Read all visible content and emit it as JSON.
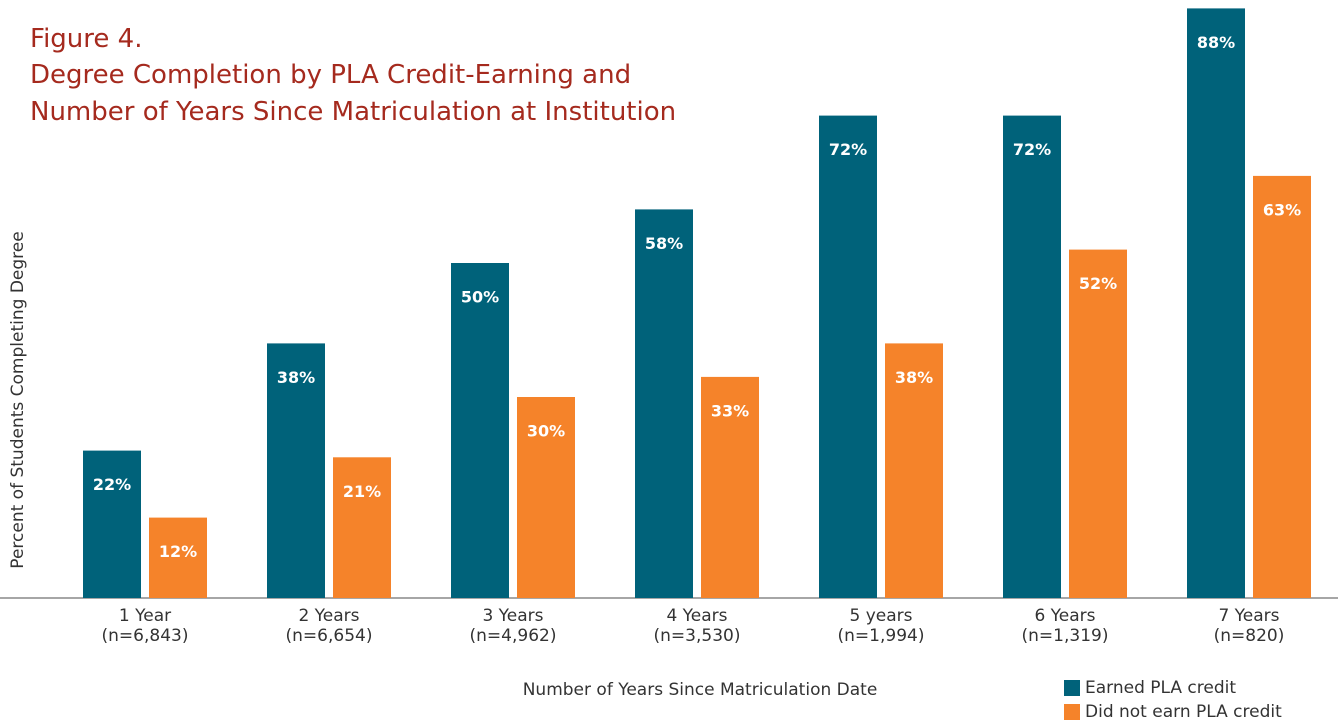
{
  "chart_data": {
    "type": "bar",
    "title": [
      "Figure 4.",
      "Degree Completion by PLA Credit-Earning and",
      "Number of Years Since Matriculation at Institution"
    ],
    "x_label": "Number of Years Since Matriculation Date",
    "y_label": "Percent of Students Completing Degree",
    "categories": [
      [
        "1 Year",
        "(n=6,843)"
      ],
      [
        "2 Years",
        "(n=6,654)"
      ],
      [
        "3 Years",
        "(n=4,962)"
      ],
      [
        "4 Years",
        "(n=3,530)"
      ],
      [
        "5 years",
        "(n=1,994)"
      ],
      [
        "6 Years",
        "(n=1,319)"
      ],
      [
        "7 Years",
        "(n=820)"
      ]
    ],
    "series": [
      {
        "name": "Earned PLA credit",
        "color": "#00627a",
        "values": [
          22,
          38,
          50,
          58,
          72,
          72,
          88
        ],
        "value_labels": [
          "22%",
          "38%",
          "50%",
          "58%",
          "72%",
          "72%",
          "88%"
        ]
      },
      {
        "name": "Did not earn PLA credit",
        "color": "#f5832a",
        "values": [
          12,
          21,
          30,
          33,
          38,
          52,
          63
        ],
        "value_labels": [
          "12%",
          "21%",
          "30%",
          "33%",
          "38%",
          "52%",
          "63%"
        ]
      }
    ],
    "ylim": [
      0,
      100
    ],
    "legend": "lower right"
  }
}
